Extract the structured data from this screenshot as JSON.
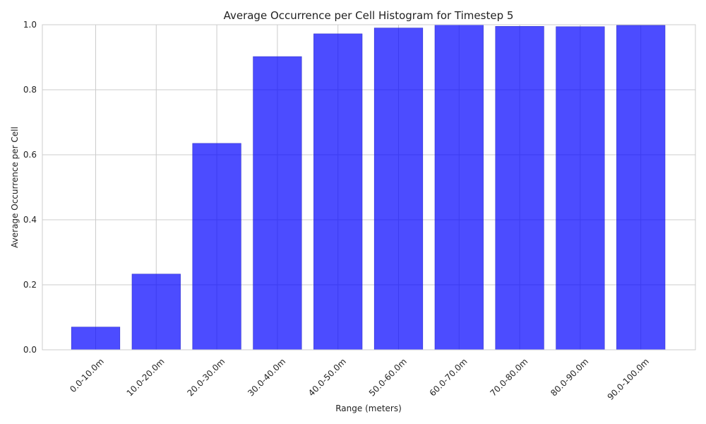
{
  "chart_data": {
    "type": "bar",
    "title": "Average Occurrence per Cell Histogram for Timestep 5",
    "xlabel": "Range (meters)",
    "ylabel": "Average Occurrence per Cell",
    "categories": [
      "0.0-10.0m",
      "10.0-20.0m",
      "20.0-30.0m",
      "30.0-40.0m",
      "40.0-50.0m",
      "50.0-60.0m",
      "60.0-70.0m",
      "70.0-80.0m",
      "80.0-90.0m",
      "90.0-100.0m"
    ],
    "values": [
      0.07,
      0.233,
      0.635,
      0.902,
      0.972,
      0.99,
      1.0,
      0.995,
      0.994,
      0.998
    ],
    "ylim": [
      0,
      1.0
    ],
    "yticks": [
      0.0,
      0.2,
      0.4,
      0.6,
      0.8,
      1.0
    ],
    "ytick_labels": [
      "0.0",
      "0.2",
      "0.4",
      "0.6",
      "0.8",
      "1.0"
    ],
    "grid": true,
    "bar_color": "#0000ff",
    "bar_opacity": 0.7
  }
}
